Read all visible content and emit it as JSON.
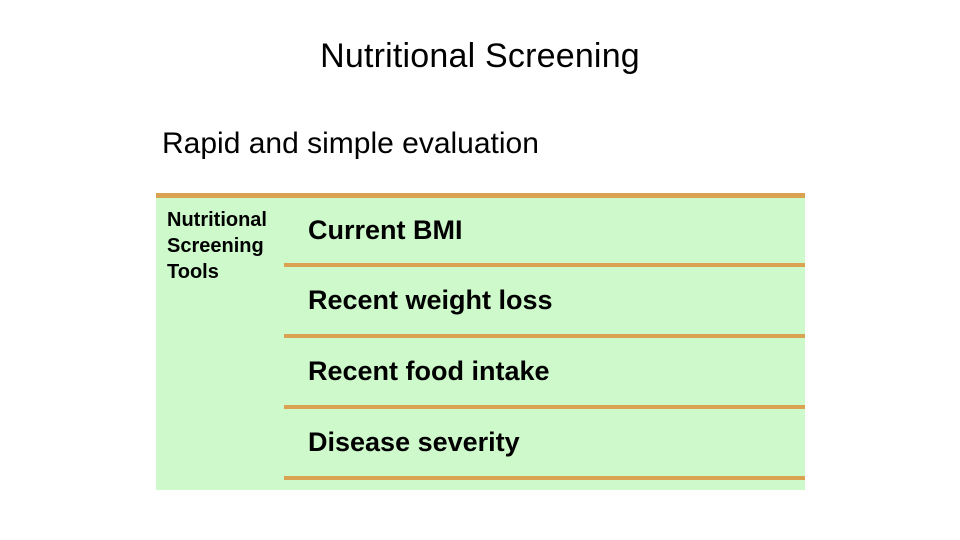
{
  "slide": {
    "title": "Nutritional Screening",
    "subtitle": "Rapid and simple evaluation",
    "table": {
      "header": "Nutritional Screening Tools",
      "rows": [
        "Current BMI",
        "Recent weight loss",
        "Recent food intake",
        "Disease severity"
      ]
    },
    "colors": {
      "background": "#ffffff",
      "table_bg": "#cdf9cb",
      "table_border": "#d9a351",
      "text": "#000000"
    }
  }
}
